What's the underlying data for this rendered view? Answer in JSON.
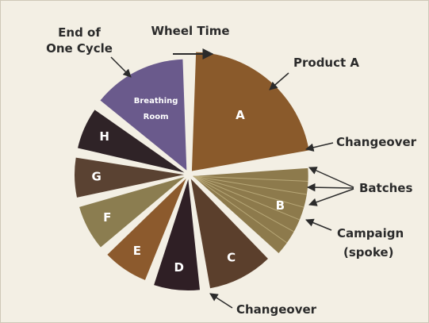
{
  "title": "Wheel Time",
  "segments": [
    {
      "label": [
        "A"
      ]
    },
    {
      "label": [
        "B"
      ]
    },
    {
      "label": [
        "C"
      ]
    },
    {
      "label": [
        "D"
      ]
    },
    {
      "label": [
        "E"
      ]
    },
    {
      "label": [
        "F"
      ]
    },
    {
      "label": [
        "G"
      ]
    },
    {
      "label": [
        "H"
      ]
    },
    {
      "label": [
        "Breathing",
        "Room"
      ]
    }
  ],
  "annotations": {
    "end_of_cycle": [
      "End of",
      "One Cycle"
    ],
    "product_a": "Product A",
    "changeover_right": "Changeover",
    "batches": "Batches",
    "campaign": [
      "Campaign",
      "(spoke)"
    ],
    "changeover_bottom": "Changeover"
  }
}
